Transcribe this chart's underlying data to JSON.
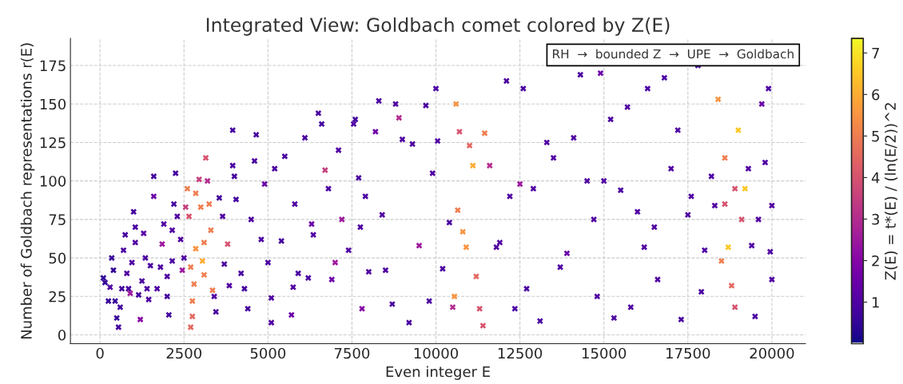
{
  "chart_data": {
    "type": "scatter",
    "title": "Integrated View: Goldbach comet colored by Z(E)",
    "xlabel": "Even integer E",
    "ylabel": "Number of Goldbach representations r(E)",
    "clabel": "Z(E) = t*(E) / (ln(E/2))^2",
    "annotations": [
      "RH  →  bounded Z  →  UPE  →  Goldbach"
    ],
    "marker": "cross",
    "grid": true,
    "xlim": [
      -880,
      21000
    ],
    "ylim": [
      -5.7,
      192.6
    ],
    "xticks": [
      0,
      2500,
      5000,
      7500,
      10000,
      12500,
      15000,
      17500,
      20000
    ],
    "yticks": [
      0,
      25,
      50,
      75,
      100,
      125,
      150,
      175
    ],
    "clim": [
      0,
      7.35
    ],
    "cticks": [
      1,
      2,
      3,
      4,
      5,
      6,
      7
    ],
    "x": [
      100,
      150,
      250,
      300,
      350,
      400,
      450,
      500,
      550,
      600,
      650,
      700,
      750,
      800,
      850,
      900,
      950,
      1000,
      1050,
      1050,
      1150,
      1200,
      1250,
      1300,
      1350,
      1400,
      1450,
      1500,
      1600,
      1600,
      1700,
      1800,
      1850,
      1900,
      2000,
      2000,
      2050,
      2150,
      2150,
      2200,
      2250,
      2300,
      2400,
      2450,
      2500,
      2550,
      2600,
      2650,
      2700,
      2750,
      2700,
      2750,
      2800,
      2850,
      2850,
      2950,
      3000,
      3050,
      3100,
      3100,
      3150,
      3200,
      3250,
      3300,
      3350,
      3400,
      3450,
      3550,
      3650,
      3700,
      3800,
      3850,
      3950,
      3950,
      4000,
      4050,
      4200,
      4300,
      4400,
      4500,
      4600,
      4650,
      4800,
      4900,
      5000,
      5100,
      5100,
      5200,
      5400,
      5500,
      5700,
      5750,
      5800,
      5900,
      6100,
      6200,
      6300,
      6350,
      6500,
      6600,
      6700,
      6800,
      6900,
      7000,
      7100,
      7200,
      7400,
      7550,
      7600,
      7700,
      7750,
      7800,
      7900,
      8000,
      8200,
      8300,
      8400,
      8500,
      8700,
      8800,
      8900,
      9000,
      9200,
      9300,
      9500,
      9700,
      9800,
      9900,
      10000,
      10050,
      10200,
      10400,
      10500,
      10550,
      10600,
      10650,
      10700,
      10800,
      10900,
      11000,
      11100,
      11200,
      11300,
      11400,
      11450,
      11600,
      11800,
      11900,
      12100,
      12200,
      12350,
      12500,
      12600,
      12700,
      12900,
      13100,
      13300,
      13500,
      13700,
      13900,
      14100,
      14300,
      14500,
      14700,
      14800,
      14900,
      15000,
      15200,
      15300,
      15500,
      15700,
      15800,
      16000,
      16200,
      16300,
      16500,
      16600,
      16800,
      17000,
      17200,
      17300,
      17500,
      17600,
      17800,
      17900,
      18000,
      18200,
      18300,
      18400,
      18500,
      18600,
      18600,
      18700,
      18800,
      18900,
      18900,
      19000,
      19100,
      19200,
      19300,
      19400,
      19500,
      19600,
      19700,
      19800,
      19900,
      20000,
      20000,
      19950
    ],
    "values": [
      37,
      34,
      22,
      31,
      50,
      42,
      22,
      11,
      5,
      18,
      30,
      55,
      65,
      40,
      30,
      27,
      47,
      80,
      70,
      60,
      26,
      10,
      35,
      66,
      50,
      30,
      23,
      45,
      90,
      103,
      30,
      44,
      59,
      72,
      38,
      25,
      13,
      48,
      68,
      85,
      105,
      77,
      62,
      42,
      50,
      83,
      95,
      77,
      44,
      22,
      5,
      12,
      33,
      56,
      92,
      101,
      83,
      48,
      60,
      39,
      115,
      100,
      85,
      68,
      29,
      25,
      15,
      89,
      77,
      46,
      59,
      32,
      110,
      133,
      103,
      88,
      40,
      30,
      17,
      75,
      113,
      130,
      62,
      98,
      47,
      24,
      8,
      108,
      61,
      116,
      13,
      31,
      85,
      40,
      128,
      37,
      72,
      65,
      144,
      137,
      107,
      95,
      36,
      47,
      120,
      75,
      55,
      137,
      140,
      102,
      70,
      17,
      90,
      41,
      132,
      152,
      78,
      42,
      20,
      150,
      141,
      127,
      8,
      124,
      58,
      149,
      22,
      105,
      160,
      126,
      43,
      73,
      18,
      25,
      150,
      81,
      132,
      67,
      57,
      123,
      110,
      38,
      17,
      6,
      131,
      110,
      57,
      60,
      165,
      90,
      17,
      98,
      160,
      30,
      95,
      9,
      125,
      115,
      44,
      53,
      128,
      169,
      100,
      75,
      25,
      170,
      100,
      140,
      11,
      94,
      148,
      18,
      80,
      57,
      160,
      70,
      36,
      167,
      108,
      133,
      10,
      78,
      90,
      175,
      28,
      55,
      103,
      84,
      153,
      48,
      85,
      115,
      57,
      32,
      95,
      18,
      133,
      75,
      95,
      108,
      58,
      12,
      75,
      150,
      112,
      160,
      36,
      84,
      54
    ],
    "cvalues": [
      0.5,
      0.5,
      0.6,
      1,
      0.6,
      0.5,
      0.6,
      0.6,
      0.8,
      0.8,
      0.8,
      0.9,
      0.8,
      1,
      0.9,
      2.5,
      1,
      0.8,
      0.9,
      1,
      0.8,
      2,
      0.9,
      1.2,
      0.9,
      1,
      1,
      0.9,
      1.5,
      0.8,
      1,
      1,
      2.5,
      1,
      1,
      0.8,
      0.8,
      0.9,
      1,
      0.8,
      0.8,
      1,
      1,
      2.5,
      1,
      3.5,
      5,
      4,
      5,
      5,
      4.5,
      4.5,
      5,
      5.5,
      5,
      3.5,
      5,
      6,
      5,
      5,
      4,
      3,
      5,
      5,
      5,
      1,
      0.9,
      0.8,
      1,
      0.9,
      4,
      1,
      0.9,
      0.8,
      0.8,
      0.8,
      0.9,
      0.8,
      0.8,
      1,
      0.9,
      0.9,
      0.9,
      1.5,
      0.9,
      1,
      1,
      0.9,
      0.8,
      0.9,
      1.5,
      1,
      1,
      0.9,
      0.9,
      0.9,
      1.5,
      1,
      0.9,
      0.8,
      3.5,
      0.9,
      1.5,
      2.5,
      1,
      2.5,
      1,
      1,
      0.8,
      0.9,
      1,
      2,
      0.9,
      1,
      1.5,
      0.9,
      1,
      1,
      0.9,
      0.9,
      3,
      1,
      0.9,
      0.9,
      2.5,
      0.9,
      0.9,
      1,
      0.9,
      1,
      0.9,
      0.9,
      3,
      5.5,
      5.5,
      5,
      4,
      5.5,
      5.5,
      4.5,
      6,
      4.5,
      4,
      4,
      5,
      3,
      1,
      1,
      0.9,
      1,
      0.9,
      2.5,
      0.9,
      0.9,
      1,
      0.9,
      1,
      1,
      1,
      1.5,
      1,
      0.9,
      1,
      1,
      1,
      1.5,
      1,
      0.9,
      0.9,
      0.9,
      1,
      1,
      1,
      1,
      0.9,
      1,
      1,
      0.9,
      1,
      1,
      0.9,
      1,
      1,
      0.9,
      0.9,
      1,
      1,
      1,
      5.5,
      5,
      4,
      5,
      6.5,
      4.5,
      4,
      4,
      6.5,
      4,
      6.5,
      1,
      1,
      0.9,
      1,
      1.5,
      1,
      1,
      1,
      1,
      1
    ]
  }
}
